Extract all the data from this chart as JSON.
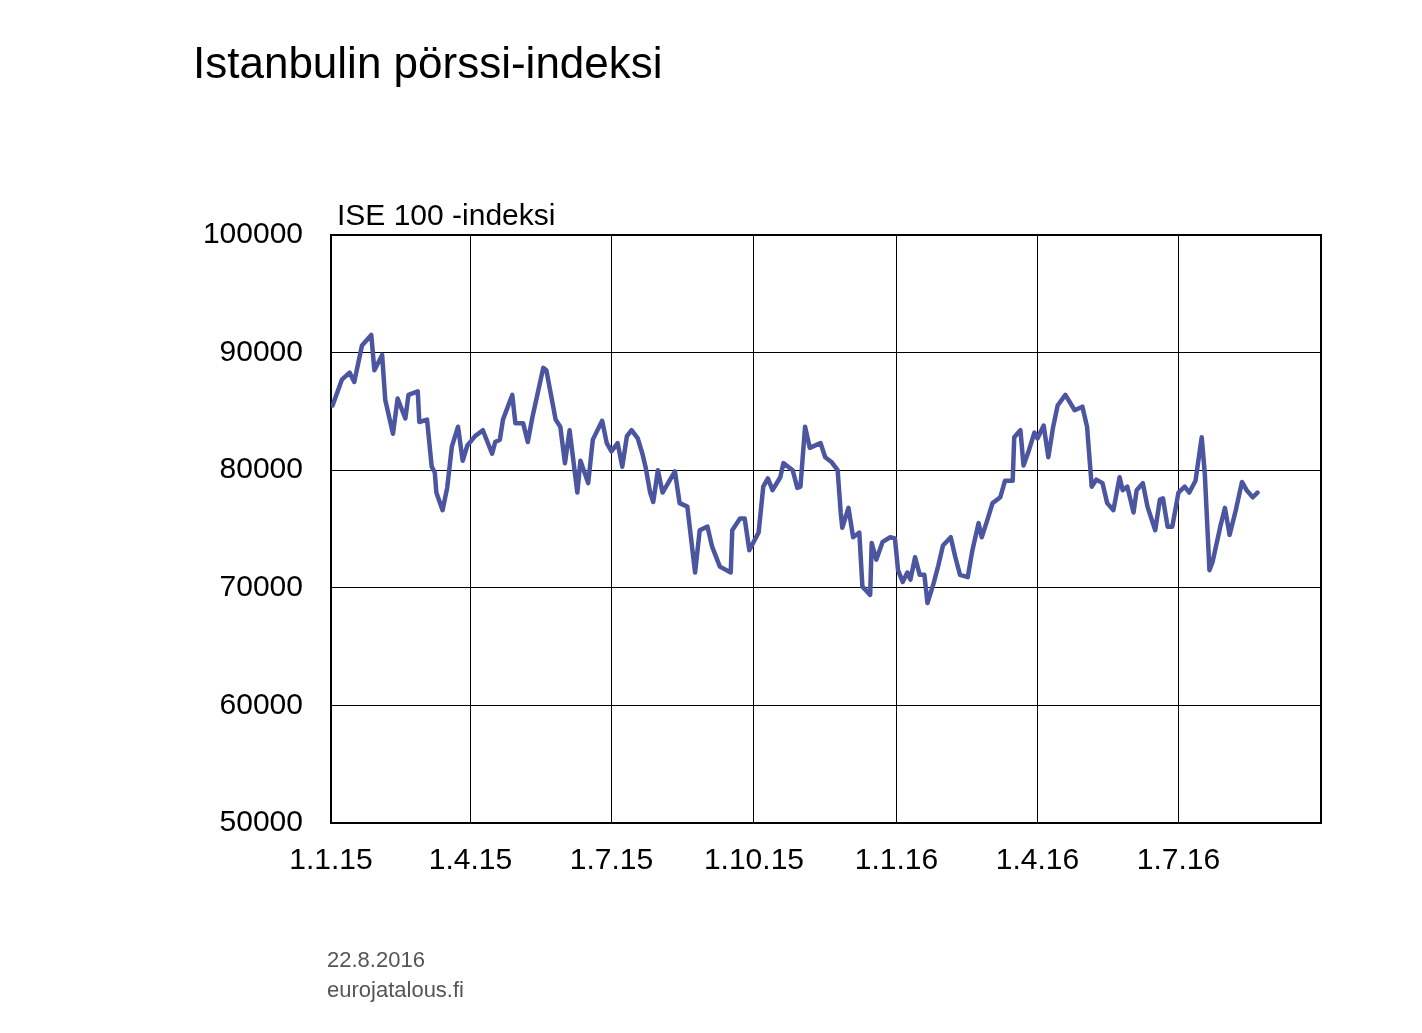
{
  "chart_data": {
    "type": "line",
    "title": "Istanbulin pörssi-indeksi",
    "ylabel": "ISE 100 -indeksi",
    "annotations": [
      "22.8.2016",
      "eurojatalous.fi"
    ],
    "xlim": [
      "2015-01-01",
      "2016-10-01"
    ],
    "xticks": [
      {
        "value": "2015-01-01",
        "label": "1.1.15"
      },
      {
        "value": "2015-04-01",
        "label": "1.4.15"
      },
      {
        "value": "2015-07-01",
        "label": "1.7.15"
      },
      {
        "value": "2015-10-01",
        "label": "1.10.15"
      },
      {
        "value": "2016-01-01",
        "label": "1.1.16"
      },
      {
        "value": "2016-04-01",
        "label": "1.4.16"
      },
      {
        "value": "2016-07-01",
        "label": "1.7.16"
      }
    ],
    "ylim": [
      50000,
      100000
    ],
    "yticks": [
      50000,
      60000,
      70000,
      80000,
      90000,
      100000
    ],
    "grid": true,
    "legend": false,
    "marker": "none",
    "line_style": "solid",
    "x": [
      "2015-01-02",
      "2015-01-08",
      "2015-01-13",
      "2015-01-16",
      "2015-01-21",
      "2015-01-27",
      "2015-01-29",
      "2015-02-03",
      "2015-02-05",
      "2015-02-10",
      "2015-02-13",
      "2015-02-18",
      "2015-02-20",
      "2015-02-26",
      "2015-02-27",
      "2015-03-04",
      "2015-03-07",
      "2015-03-09",
      "2015-03-10",
      "2015-03-14",
      "2015-03-17",
      "2015-03-20",
      "2015-03-24",
      "2015-03-27",
      "2015-03-30",
      "2015-04-04",
      "2015-04-09",
      "2015-04-15",
      "2015-04-17",
      "2015-04-20",
      "2015-04-22",
      "2015-04-28",
      "2015-04-30",
      "2015-05-05",
      "2015-05-08",
      "2015-05-11",
      "2015-05-18",
      "2015-05-20",
      "2015-05-26",
      "2015-05-29",
      "2015-06-01",
      "2015-06-04",
      "2015-06-09",
      "2015-06-11",
      "2015-06-16",
      "2015-06-19",
      "2015-06-25",
      "2015-06-28",
      "2015-07-01",
      "2015-07-05",
      "2015-07-08",
      "2015-07-11",
      "2015-07-14",
      "2015-07-18",
      "2015-07-21",
      "2015-07-23",
      "2015-07-26",
      "2015-07-28",
      "2015-07-31",
      "2015-08-03",
      "2015-08-11",
      "2015-08-14",
      "2015-08-19",
      "2015-08-24",
      "2015-08-27",
      "2015-09-01",
      "2015-09-04",
      "2015-09-09",
      "2015-09-16",
      "2015-09-17",
      "2015-09-22",
      "2015-09-25",
      "2015-09-28",
      "2015-10-04",
      "2015-10-07",
      "2015-10-10",
      "2015-10-13",
      "2015-10-18",
      "2015-10-20",
      "2015-10-26",
      "2015-10-29",
      "2015-10-31",
      "2015-11-03",
      "2015-11-06",
      "2015-11-13",
      "2015-11-16",
      "2015-11-20",
      "2015-11-24",
      "2015-11-26",
      "2015-11-27",
      "2015-12-01",
      "2015-12-04",
      "2015-12-08",
      "2015-12-10",
      "2015-12-15",
      "2015-12-16",
      "2015-12-19",
      "2015-12-23",
      "2015-12-28",
      "2015-12-31",
      "2016-01-02",
      "2016-01-05",
      "2016-01-08",
      "2016-01-10",
      "2016-01-13",
      "2016-01-16",
      "2016-01-19",
      "2016-01-21",
      "2016-01-25",
      "2016-01-28",
      "2016-01-31",
      "2016-02-05",
      "2016-02-08",
      "2016-02-11",
      "2016-02-16",
      "2016-02-19",
      "2016-02-23",
      "2016-02-25",
      "2016-02-28",
      "2016-03-03",
      "2016-03-08",
      "2016-03-11",
      "2016-03-16",
      "2016-03-17",
      "2016-03-21",
      "2016-03-23",
      "2016-03-26",
      "2016-03-30",
      "2016-04-01",
      "2016-04-05",
      "2016-04-08",
      "2016-04-11",
      "2016-04-14",
      "2016-04-19",
      "2016-04-25",
      "2016-04-30",
      "2016-05-03",
      "2016-05-06",
      "2016-05-09",
      "2016-05-13",
      "2016-05-16",
      "2016-05-20",
      "2016-05-24",
      "2016-05-26",
      "2016-05-29",
      "2016-06-02",
      "2016-06-04",
      "2016-06-08",
      "2016-06-11",
      "2016-06-16",
      "2016-06-19",
      "2016-06-21",
      "2016-06-24",
      "2016-06-27",
      "2016-07-01",
      "2016-07-05",
      "2016-07-08",
      "2016-07-12",
      "2016-07-16",
      "2016-07-18",
      "2016-07-21",
      "2016-07-23",
      "2016-07-28",
      "2016-07-31",
      "2016-08-03",
      "2016-08-07",
      "2016-08-11",
      "2016-08-14",
      "2016-08-18",
      "2016-08-21"
    ],
    "series": [
      {
        "color": "#4b55a0",
        "values": [
          85500,
          87700,
          88300,
          87500,
          90600,
          91500,
          88500,
          89800,
          86000,
          83100,
          86100,
          84400,
          86400,
          86700,
          84100,
          84300,
          80300,
          79800,
          78100,
          76600,
          78500,
          82000,
          83700,
          80800,
          82100,
          82900,
          83400,
          81400,
          82400,
          82600,
          84300,
          86400,
          84000,
          84000,
          82400,
          84500,
          88700,
          88500,
          84300,
          83700,
          80600,
          83400,
          78100,
          80800,
          78900,
          82600,
          84200,
          82300,
          81600,
          82300,
          80300,
          82900,
          83400,
          82700,
          81400,
          80300,
          78100,
          77300,
          80000,
          78100,
          79900,
          77200,
          76900,
          71300,
          74900,
          75200,
          73500,
          71800,
          71300,
          74900,
          75900,
          75900,
          73200,
          74700,
          78600,
          79300,
          78300,
          79400,
          80600,
          80000,
          78500,
          78600,
          83700,
          81900,
          82300,
          81100,
          80700,
          80000,
          76400,
          75100,
          76800,
          74300,
          74700,
          70100,
          69400,
          73800,
          72400,
          73900,
          74300,
          74200,
          71500,
          70500,
          71300,
          70700,
          72600,
          71100,
          71100,
          68700,
          70400,
          71900,
          73600,
          74300,
          72600,
          71100,
          70900,
          73200,
          75500,
          74300,
          75500,
          77200,
          77700,
          79100,
          79100,
          82800,
          83400,
          80400,
          81500,
          83200,
          82700,
          83800,
          81100,
          83600,
          85500,
          86400,
          85100,
          85400,
          83700,
          78600,
          79200,
          78900,
          77200,
          76600,
          79400,
          78300,
          78600,
          76400,
          78300,
          78900,
          76900,
          74900,
          77500,
          77600,
          75200,
          75200,
          78100,
          78600,
          78100,
          79100,
          82800,
          79700,
          71500,
          72200,
          75200,
          76800,
          74500,
          76600,
          79000,
          78300,
          77700,
          78100
        ]
      }
    ]
  }
}
